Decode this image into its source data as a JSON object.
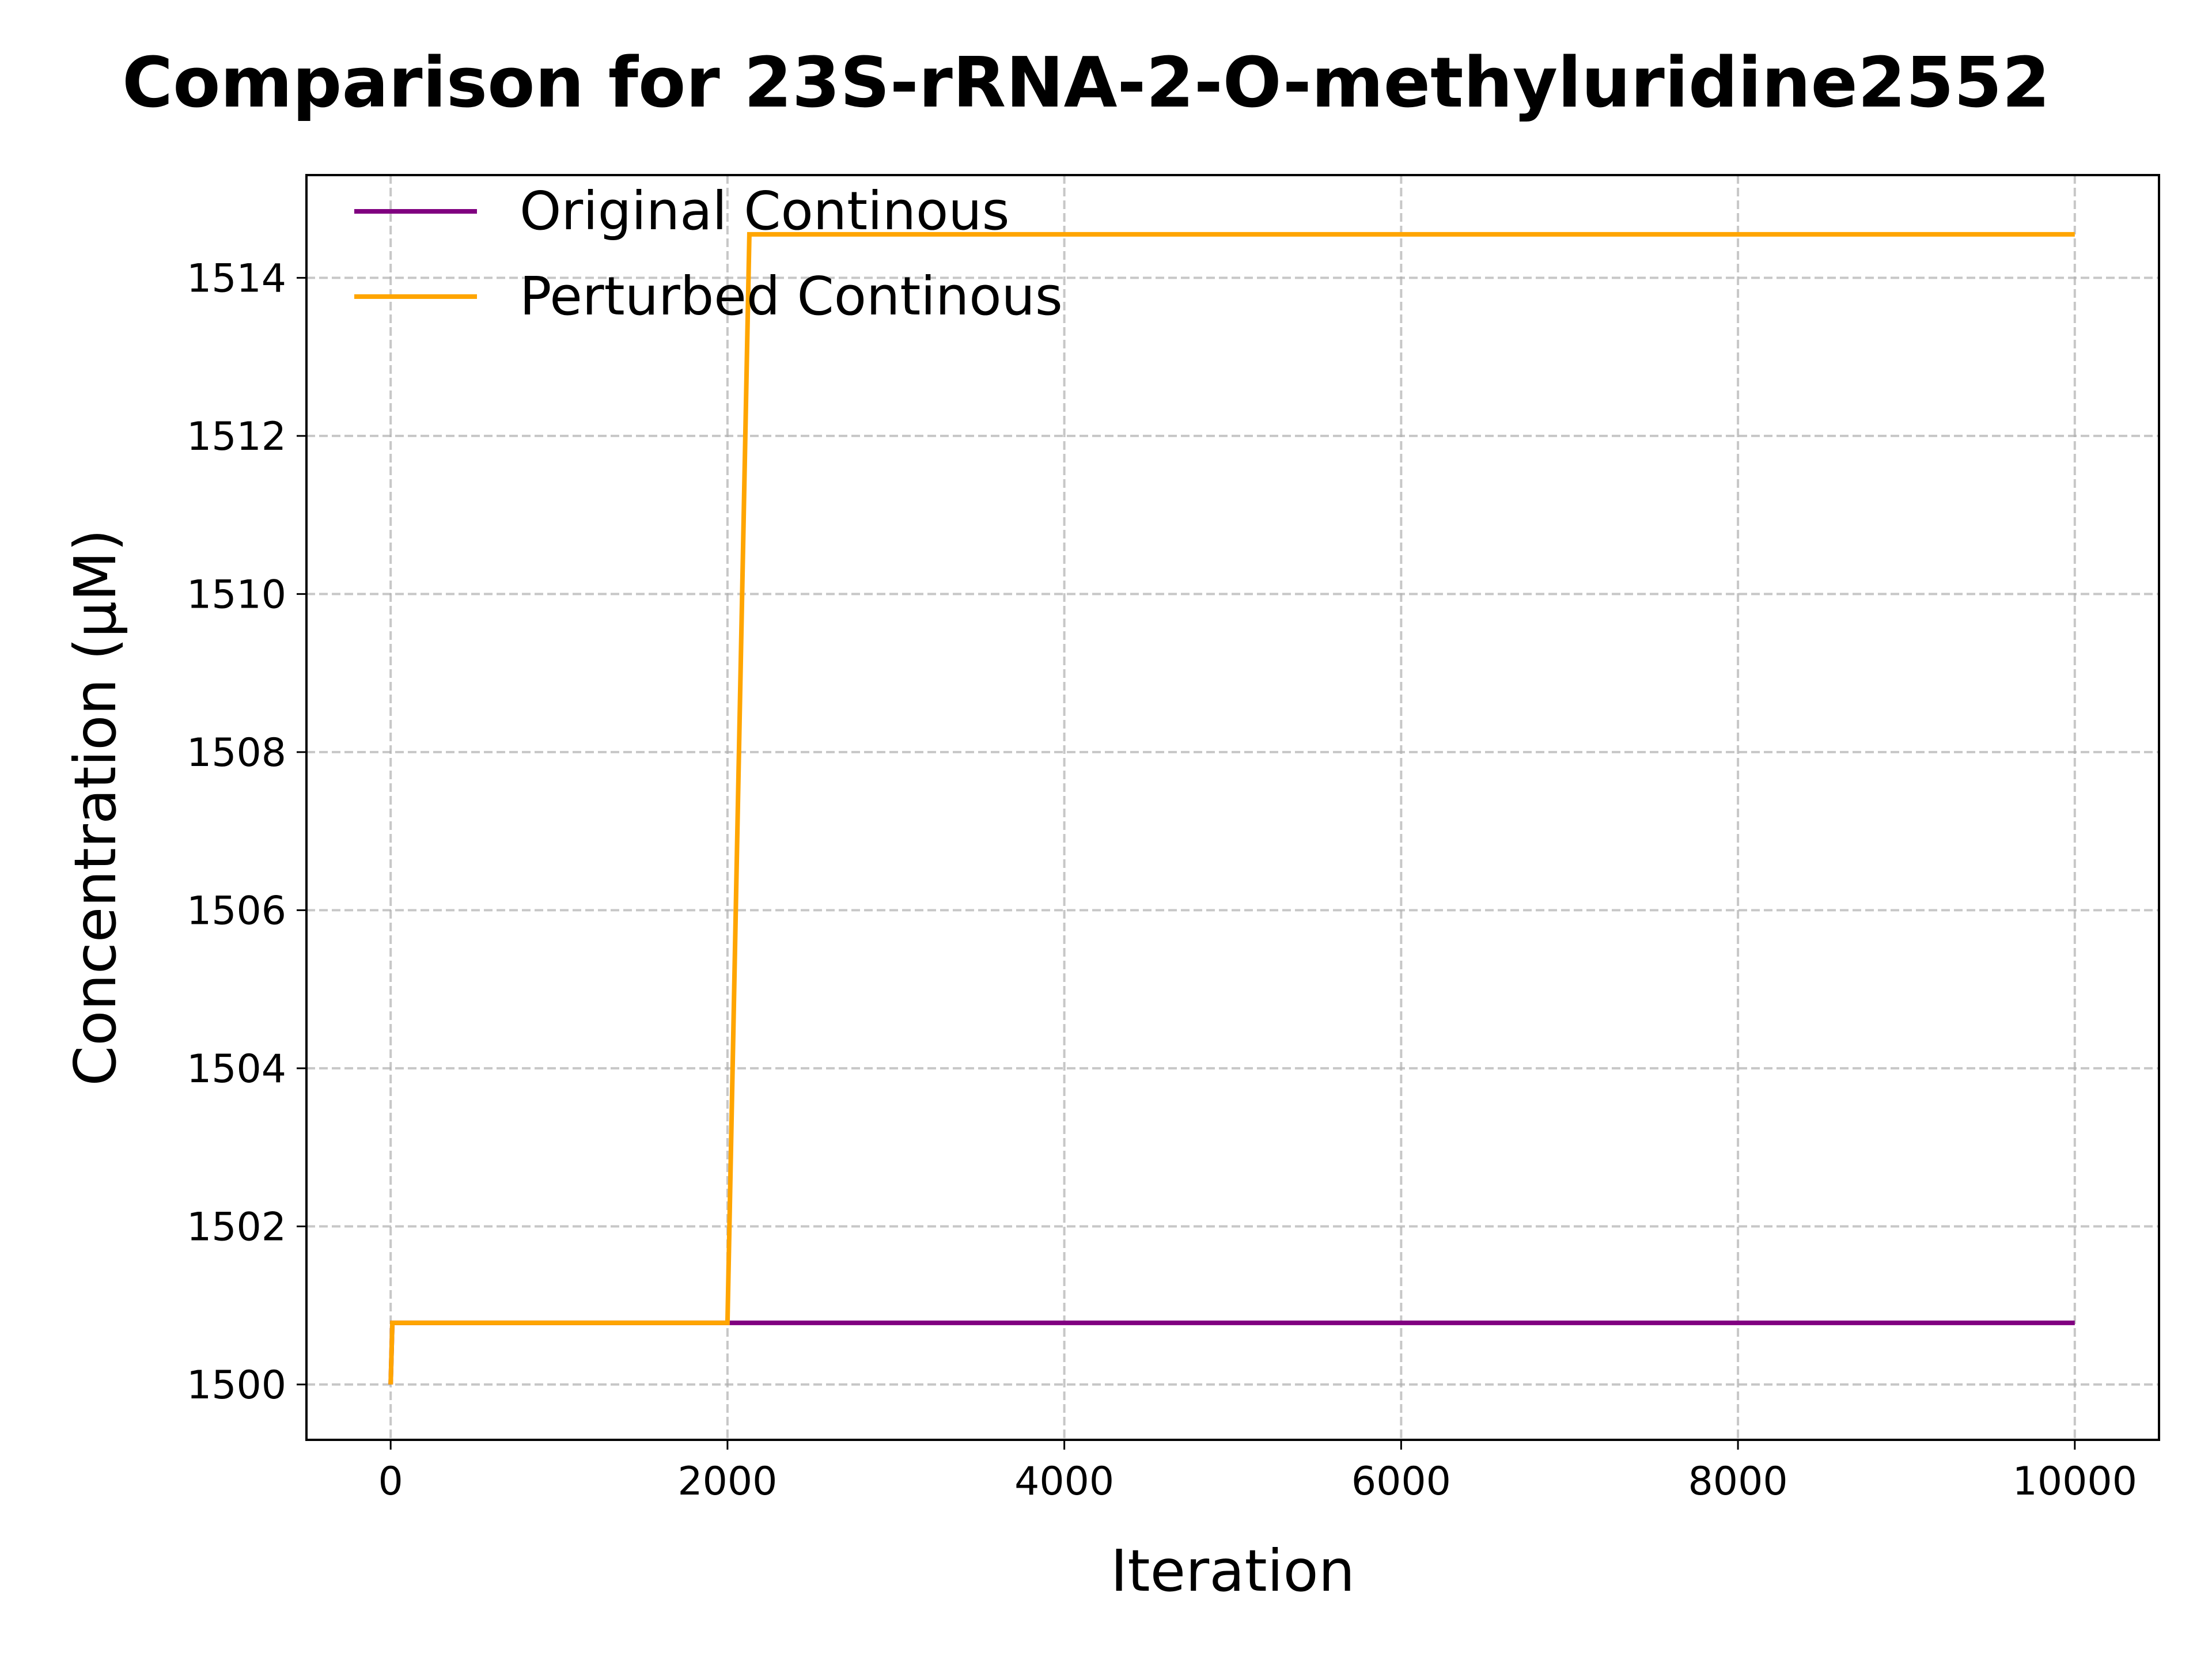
{
  "chart_data": {
    "type": "line",
    "title": "Comparison for 23S-rRNA-2-O-methyluridine2552",
    "xlabel": "Iteration",
    "ylabel": "Concentration (μM)",
    "xlim": [
      -500,
      10500
    ],
    "ylim": [
      1499.3,
      1515.3
    ],
    "xticks": [
      0,
      2000,
      4000,
      6000,
      8000,
      10000
    ],
    "xtick_labels": [
      "0",
      "2000",
      "4000",
      "6000",
      "8000",
      "10000"
    ],
    "yticks": [
      1500,
      1502,
      1504,
      1506,
      1508,
      1510,
      1512,
      1514
    ],
    "ytick_labels": [
      "1500",
      "1502",
      "1504",
      "1506",
      "1508",
      "1510",
      "1512",
      "1514"
    ],
    "grid": true,
    "legend_position": "upper-left",
    "series": [
      {
        "name": "Original Continous",
        "color": "#800080",
        "x": [
          0,
          10,
          10000
        ],
        "y": [
          1500.0,
          1500.78,
          1500.78
        ]
      },
      {
        "name": "Perturbed Continous",
        "color": "#ffa500",
        "x": [
          0,
          10,
          2000,
          2130,
          10000
        ],
        "y": [
          1500.0,
          1500.78,
          1500.78,
          1514.55,
          1514.55
        ]
      }
    ]
  }
}
